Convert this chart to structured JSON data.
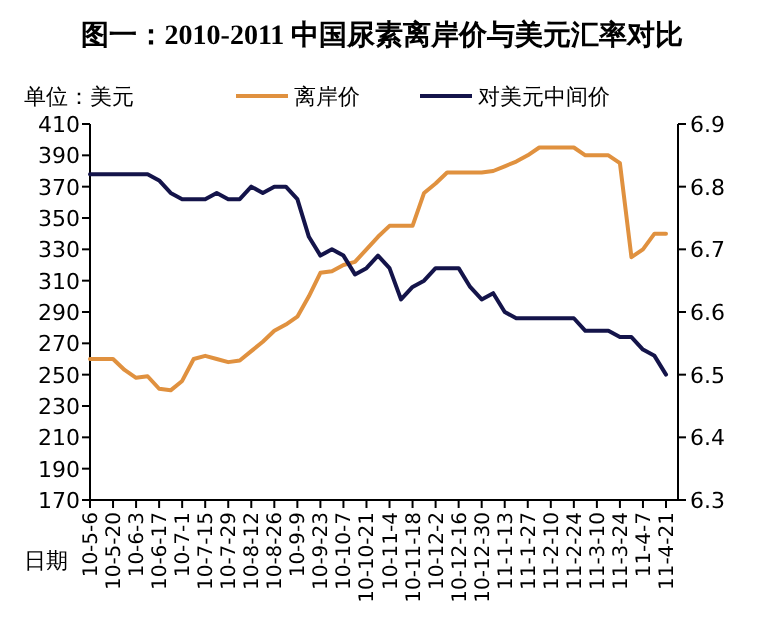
{
  "chart_data": {
    "type": "line",
    "title": "图一：2010-2011 中国尿素离岸价与美元汇率对比",
    "ylabel": "单位：美元",
    "xlabel": "日期",
    "categories": [
      "10-5-6",
      null,
      "10-5-20",
      null,
      "10-6-3",
      null,
      "10-6-17",
      null,
      "10-7-1",
      null,
      "10-7-15",
      null,
      "10-7-29",
      null,
      "10-8-12",
      null,
      "10-8-26",
      null,
      "10-9-9",
      null,
      "10-9-23",
      null,
      "10-10-7",
      null,
      "10-10-21",
      null,
      "10-11-4",
      null,
      "10-11-18",
      null,
      "10-12-2",
      null,
      "10-12-16",
      null,
      "10-12-30",
      null,
      "11-1-13",
      null,
      "11-1-27",
      null,
      "11-2-10",
      null,
      "11-2-24",
      null,
      "11-3-10",
      null,
      "11-3-24",
      null,
      "11-4-7",
      null,
      "11-4-21"
    ],
    "series": [
      {
        "name": "离岸价",
        "color": "#e0913f",
        "values": [
          260,
          260,
          260,
          253,
          248,
          249,
          241,
          240,
          246,
          260,
          262,
          260,
          258,
          259,
          265,
          271,
          278,
          282,
          287,
          300,
          315,
          316,
          320,
          322,
          330,
          338,
          345,
          345,
          345,
          366,
          372,
          379,
          379,
          379,
          379,
          380,
          383,
          386,
          390,
          395,
          395,
          395,
          395,
          390,
          390,
          390,
          385,
          325,
          330,
          340,
          340
        ]
      },
      {
        "name": "对美元中间价",
        "color": "#14144a",
        "axis": "y2",
        "values": [
          6.82,
          6.82,
          6.82,
          6.82,
          6.82,
          6.82,
          6.81,
          6.79,
          6.78,
          6.78,
          6.78,
          6.79,
          6.78,
          6.78,
          6.8,
          6.79,
          6.8,
          6.8,
          6.78,
          6.72,
          6.69,
          6.7,
          6.69,
          6.66,
          6.67,
          6.69,
          6.67,
          6.62,
          6.64,
          6.65,
          6.67,
          6.67,
          6.67,
          6.64,
          6.62,
          6.63,
          6.6,
          6.59,
          6.59,
          6.59,
          6.59,
          6.59,
          6.59,
          6.57,
          6.57,
          6.57,
          6.56,
          6.56,
          6.54,
          6.53,
          6.5
        ]
      }
    ],
    "ylim": [
      170,
      410
    ],
    "yticks": [
      170,
      190,
      210,
      230,
      250,
      270,
      290,
      310,
      330,
      350,
      370,
      390,
      410
    ],
    "y2lim": [
      6.3,
      6.9
    ],
    "y2ticks": [
      6.3,
      6.4,
      {
        "value": 6.5,
        "label": "6.5"
      },
      6.6,
      6.7,
      6.8,
      6.9
    ],
    "legend": "top"
  }
}
